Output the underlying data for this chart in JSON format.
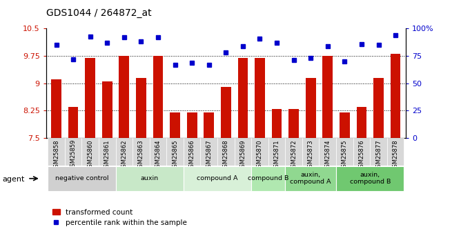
{
  "title": "GDS1044 / 264872_at",
  "samples": [
    "GSM25858",
    "GSM25859",
    "GSM25860",
    "GSM25861",
    "GSM25862",
    "GSM25863",
    "GSM25864",
    "GSM25865",
    "GSM25866",
    "GSM25867",
    "GSM25868",
    "GSM25869",
    "GSM25870",
    "GSM25871",
    "GSM25872",
    "GSM25873",
    "GSM25874",
    "GSM25875",
    "GSM25876",
    "GSM25877",
    "GSM25878"
  ],
  "bar_values": [
    9.1,
    8.35,
    9.7,
    9.05,
    9.75,
    9.15,
    9.75,
    8.2,
    8.2,
    8.2,
    8.9,
    9.7,
    9.7,
    8.3,
    8.3,
    9.15,
    9.75,
    8.2,
    8.35,
    9.15,
    9.8
  ],
  "percentile_values": [
    85,
    72,
    93,
    87,
    92,
    88,
    92,
    67,
    69,
    67,
    78,
    84,
    91,
    87,
    71,
    73,
    84,
    70,
    86,
    85,
    94
  ],
  "ylim_left": [
    7.5,
    10.5
  ],
  "ylim_right": [
    0,
    100
  ],
  "yticks_left": [
    7.5,
    8.25,
    9.0,
    9.75,
    10.5
  ],
  "ytick_labels_left": [
    "7.5",
    "8.25",
    "9",
    "9.75",
    "10.5"
  ],
  "yticks_right": [
    0,
    25,
    50,
    75,
    100
  ],
  "ytick_labels_right": [
    "0",
    "25",
    "50",
    "75",
    "100%"
  ],
  "groups": [
    {
      "label": "negative control",
      "start": 0,
      "end": 3,
      "color": "#d0d0d0"
    },
    {
      "label": "auxin",
      "start": 4,
      "end": 7,
      "color": "#c8e8c8"
    },
    {
      "label": "compound A",
      "start": 8,
      "end": 11,
      "color": "#d8f0d8"
    },
    {
      "label": "compound B",
      "start": 12,
      "end": 13,
      "color": "#b0e8b0"
    },
    {
      "label": "auxin,\ncompound A",
      "start": 14,
      "end": 16,
      "color": "#90d890"
    },
    {
      "label": "auxin,\ncompound B",
      "start": 17,
      "end": 20,
      "color": "#70c870"
    }
  ],
  "bar_color": "#cc1100",
  "dot_color": "#0000cc",
  "agent_label": "agent",
  "legend_bar_label": "transformed count",
  "legend_dot_label": "percentile rank within the sample",
  "background_color": "#ffffff"
}
